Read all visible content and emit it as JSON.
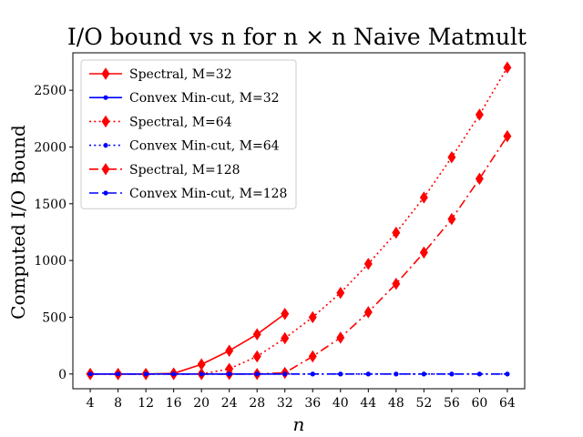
{
  "chart_data": {
    "type": "line",
    "title": "I/O bound vs n for n × n Naive Matmult",
    "xlabel": "n",
    "ylabel": "Computed I/O Bound",
    "x_ticks": [
      4,
      8,
      12,
      16,
      20,
      24,
      28,
      32,
      36,
      40,
      44,
      48,
      52,
      56,
      60,
      64
    ],
    "y_ticks": [
      0,
      500,
      1000,
      1500,
      2000,
      2500
    ],
    "xlim": [
      1.5,
      66.5
    ],
    "ylim": [
      -130,
      2830
    ],
    "grid": false,
    "legend_position": "top-left",
    "series": [
      {
        "name": "Spectral, M=32",
        "color": "#ff0000",
        "line_style": "solid",
        "marker": "diamond",
        "x": [
          4,
          8,
          12,
          16,
          20,
          24,
          28,
          32
        ],
        "y": [
          0,
          0,
          0,
          5,
          85,
          205,
          350,
          530
        ]
      },
      {
        "name": "Convex Min-cut, M=32",
        "color": "#0000ff",
        "line_style": "solid",
        "marker": "dot",
        "x": [
          4,
          8,
          12,
          16,
          20,
          24,
          28,
          32
        ],
        "y": [
          0,
          0,
          0,
          0,
          0,
          0,
          0,
          0
        ]
      },
      {
        "name": "Spectral, M=64",
        "color": "#ff0000",
        "line_style": "dotted",
        "marker": "diamond",
        "x": [
          4,
          8,
          12,
          16,
          20,
          24,
          28,
          32,
          36,
          40,
          44,
          48,
          52,
          56,
          60,
          64
        ],
        "y": [
          0,
          0,
          0,
          0,
          0,
          45,
          155,
          315,
          500,
          715,
          970,
          1245,
          1555,
          1910,
          2285,
          2700
        ]
      },
      {
        "name": "Convex Min-cut, M=64",
        "color": "#0000ff",
        "line_style": "dotted",
        "marker": "dot",
        "x": [
          4,
          8,
          12,
          16,
          20,
          24,
          28,
          32,
          36,
          40,
          44,
          48,
          52,
          56,
          60,
          64
        ],
        "y": [
          0,
          0,
          0,
          0,
          0,
          0,
          0,
          0,
          0,
          0,
          0,
          0,
          0,
          0,
          0,
          0
        ]
      },
      {
        "name": "Spectral, M=128",
        "color": "#ff0000",
        "line_style": "dashdot",
        "marker": "diamond",
        "x": [
          4,
          8,
          12,
          16,
          20,
          24,
          28,
          32,
          36,
          40,
          44,
          48,
          52,
          56,
          60,
          64
        ],
        "y": [
          0,
          0,
          0,
          0,
          0,
          0,
          0,
          10,
          155,
          320,
          545,
          795,
          1070,
          1365,
          1720,
          2095
        ]
      },
      {
        "name": "Convex Min-cut, M=128",
        "color": "#0000ff",
        "line_style": "dashdot",
        "marker": "dot",
        "x": [
          4,
          8,
          12,
          16,
          20,
          24,
          28,
          32,
          36,
          40,
          44,
          48,
          52,
          56,
          60,
          64
        ],
        "y": [
          0,
          0,
          0,
          0,
          0,
          0,
          0,
          0,
          0,
          0,
          0,
          0,
          0,
          0,
          0,
          0
        ]
      }
    ]
  }
}
